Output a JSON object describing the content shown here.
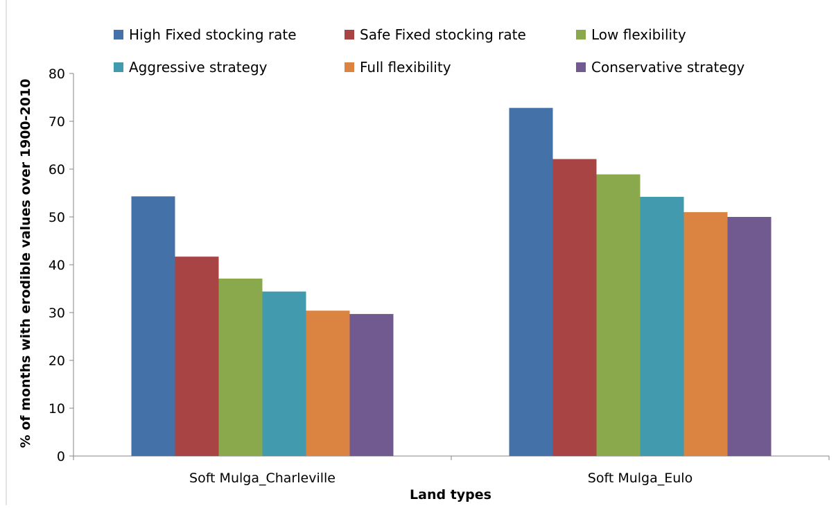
{
  "chart_data": {
    "type": "bar",
    "title": "",
    "xlabel": "Land types",
    "ylabel": "% of months with erodible values over 1900-2010",
    "ylim": [
      0,
      80
    ],
    "yticks": [
      0,
      10,
      20,
      30,
      40,
      50,
      60,
      70,
      80
    ],
    "grid": false,
    "legend_position": "top",
    "categories": [
      "Soft Mulga_Charleville",
      "Soft Mulga_Eulo"
    ],
    "series": [
      {
        "name": "High Fixed stocking rate",
        "color": "#4472A8",
        "values": [
          54.3,
          72.8
        ]
      },
      {
        "name": "Safe Fixed stocking rate",
        "color": "#A84444",
        "values": [
          41.7,
          62.1
        ]
      },
      {
        "name": "Low flexibility",
        "color": "#8AA84C",
        "values": [
          37.1,
          58.9
        ]
      },
      {
        "name": "Aggressive strategy",
        "color": "#429AAF",
        "values": [
          34.4,
          54.2
        ]
      },
      {
        "name": "Full flexibility",
        "color": "#DB8340",
        "values": [
          30.4,
          51.0
        ]
      },
      {
        "name": "Conservative strategy",
        "color": "#715A8F",
        "values": [
          29.7,
          50.0
        ]
      }
    ]
  }
}
